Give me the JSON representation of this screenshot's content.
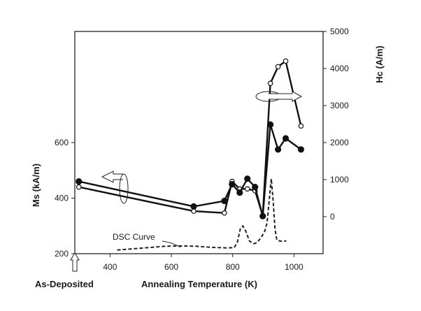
{
  "chart_data": {
    "type": "line",
    "title": "",
    "xlabel": "Annealing Temperature (K)",
    "ylabel_left": "Ms (kA/m)",
    "ylabel_right": "Hc (A/m)",
    "xlim": [
      285,
      1095
    ],
    "ylim_left": [
      200,
      1000
    ],
    "ylim_right": [
      -1000,
      5000
    ],
    "x_ticks": [
      400,
      600,
      800,
      1000
    ],
    "y_left_ticks": [
      200,
      400,
      600
    ],
    "y_right_ticks": [
      0,
      1000,
      2000,
      3000,
      4000,
      5000
    ],
    "series": [
      {
        "name": "Hc",
        "axis": "right",
        "marker": "open-circle",
        "x": [
          298,
          673,
          773,
          798,
          823,
          848,
          873,
          898,
          923,
          948,
          973,
          1023
        ],
        "y": [
          800,
          150,
          100,
          950,
          750,
          750,
          700,
          30,
          3600,
          4050,
          4200,
          2450
        ]
      },
      {
        "name": "Ms",
        "axis": "left",
        "marker": "filled-circle",
        "x": [
          298,
          673,
          773,
          798,
          823,
          848,
          873,
          898,
          923,
          948,
          973,
          1023
        ],
        "y": [
          460,
          370,
          390,
          450,
          420,
          470,
          440,
          335,
          665,
          575,
          615,
          575
        ]
      },
      {
        "name": "DSC Curve",
        "axis": "none",
        "style": "dashed",
        "x": [
          423,
          500,
          580,
          630,
          680,
          730,
          780,
          805,
          815,
          825,
          833,
          843,
          855,
          868,
          880,
          895,
          905,
          912,
          920,
          926,
          932,
          938,
          944,
          955,
          975
        ],
        "y": [
          213,
          220,
          227,
          228,
          227,
          223,
          221,
          222,
          240,
          290,
          300,
          280,
          245,
          236,
          240,
          262,
          282,
          310,
          400,
          470,
          390,
          290,
          250,
          245,
          246
        ]
      }
    ],
    "annotations": {
      "as_deposited": "As-Deposited",
      "dsc_label": "DSC Curve"
    }
  }
}
